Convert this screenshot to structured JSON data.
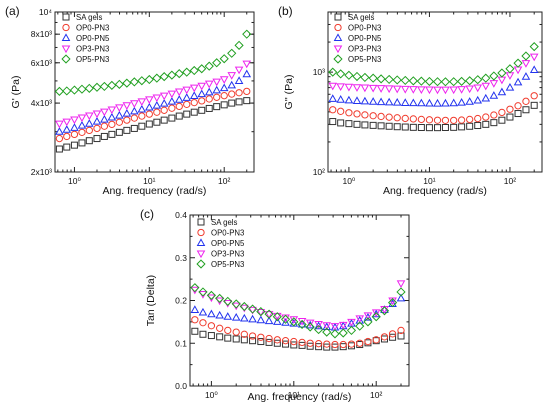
{
  "colors": {
    "SA gels": "#333333",
    "OP0-PN3": "#f03c2e",
    "OP0-PN5": "#2233ee",
    "OP3-PN3": "#ee22ee",
    "OP5-PN3": "#22a022"
  },
  "markers": {
    "SA gels": "square",
    "OP0-PN3": "circle",
    "OP0-PN5": "triangle-up",
    "OP3-PN3": "triangle-down",
    "OP5-PN3": "diamond"
  },
  "chart_data": [
    {
      "panel_label": "(a)",
      "type": "scatter",
      "xscale": "log",
      "yscale": "log",
      "xlabel": "Ang. frequency (rad/s)",
      "ylabel": "G' (Pa)",
      "xlim": [
        0.55,
        250
      ],
      "ylim": [
        2000,
        10000
      ],
      "xticks": [
        {
          "v": 1,
          "label": "10⁰"
        },
        {
          "v": 10,
          "label": "10¹"
        },
        {
          "v": 100,
          "label": "10²"
        }
      ],
      "yticks": [
        {
          "v": 2000,
          "label": "2x10³"
        },
        {
          "v": 4000,
          "label": "4x10³"
        },
        {
          "v": 6000,
          "label": "6x10³"
        },
        {
          "v": 8000,
          "label": "8x10³"
        },
        {
          "v": 10000,
          "label": "10⁴"
        }
      ],
      "legend_position": "top-left",
      "x": [
        0.63,
        0.79,
        1.0,
        1.26,
        1.58,
        2.0,
        2.51,
        3.16,
        3.98,
        5.01,
        6.31,
        7.94,
        10.0,
        12.6,
        15.8,
        20.0,
        25.1,
        31.6,
        39.8,
        50.1,
        63.1,
        79.4,
        100,
        126,
        158,
        200
      ],
      "series": [
        {
          "name": "SA gels",
          "values": [
            2520,
            2570,
            2620,
            2680,
            2740,
            2800,
            2860,
            2920,
            2980,
            3040,
            3100,
            3170,
            3240,
            3300,
            3370,
            3440,
            3510,
            3580,
            3650,
            3720,
            3790,
            3860,
            3930,
            4000,
            4050,
            4100
          ]
        },
        {
          "name": "OP0-PN3",
          "values": [
            2800,
            2860,
            2920,
            2980,
            3040,
            3100,
            3170,
            3230,
            3300,
            3370,
            3440,
            3510,
            3580,
            3650,
            3720,
            3800,
            3870,
            3950,
            4020,
            4090,
            4170,
            4240,
            4310,
            4380,
            4440,
            4500
          ]
        },
        {
          "name": "OP0-PN5",
          "values": [
            3000,
            3060,
            3120,
            3190,
            3250,
            3320,
            3390,
            3460,
            3530,
            3600,
            3680,
            3750,
            3830,
            3900,
            3980,
            4060,
            4140,
            4220,
            4300,
            4380,
            4460,
            4550,
            4650,
            4780,
            5000,
            5350
          ]
        },
        {
          "name": "OP3-PN3",
          "values": [
            3250,
            3320,
            3390,
            3460,
            3530,
            3600,
            3670,
            3750,
            3830,
            3910,
            3990,
            4070,
            4150,
            4230,
            4310,
            4400,
            4490,
            4580,
            4670,
            4760,
            4860,
            4960,
            5080,
            5300,
            5600,
            5950
          ]
        },
        {
          "name": "OP5-PN3",
          "values": [
            4500,
            4520,
            4560,
            4600,
            4640,
            4690,
            4730,
            4780,
            4830,
            4890,
            4950,
            5010,
            5070,
            5140,
            5220,
            5300,
            5380,
            5460,
            5550,
            5650,
            5800,
            6000,
            6250,
            6600,
            7150,
            8000
          ]
        }
      ]
    },
    {
      "panel_label": "(b)",
      "type": "scatter",
      "xscale": "log",
      "yscale": "log",
      "xlabel": "Ang. frequency (rad/s)",
      "ylabel": "G'' (Pa)",
      "xlim": [
        0.55,
        250
      ],
      "ylim": [
        100,
        4000
      ],
      "xticks": [
        {
          "v": 1,
          "label": "10⁰"
        },
        {
          "v": 10,
          "label": "10¹"
        },
        {
          "v": 100,
          "label": "10²"
        }
      ],
      "yticks": [
        {
          "v": 100,
          "label": "10²"
        },
        {
          "v": 1000,
          "label": "10³"
        }
      ],
      "legend_position": "top-left",
      "x": [
        0.63,
        0.79,
        1.0,
        1.26,
        1.58,
        2.0,
        2.51,
        3.16,
        3.98,
        5.01,
        6.31,
        7.94,
        10.0,
        12.6,
        15.8,
        20.0,
        25.1,
        31.6,
        39.8,
        50.1,
        63.1,
        79.4,
        100,
        126,
        158,
        200
      ],
      "series": [
        {
          "name": "SA gels",
          "values": [
            320,
            310,
            305,
            300,
            296,
            293,
            290,
            287,
            284,
            282,
            280,
            279,
            278,
            278,
            279,
            280,
            283,
            287,
            292,
            300,
            312,
            330,
            355,
            385,
            420,
            465
          ]
        },
        {
          "name": "OP0-PN3",
          "values": [
            420,
            405,
            392,
            382,
            373,
            366,
            360,
            354,
            349,
            344,
            340,
            336,
            333,
            330,
            329,
            329,
            331,
            336,
            343,
            355,
            372,
            395,
            425,
            460,
            510,
            580
          ]
        },
        {
          "name": "OP0-PN5",
          "values": [
            540,
            530,
            522,
            515,
            510,
            505,
            501,
            498,
            495,
            492,
            490,
            488,
            486,
            485,
            486,
            489,
            495,
            505,
            520,
            545,
            580,
            630,
            700,
            790,
            900,
            1050
          ]
        },
        {
          "name": "OP3-PN3",
          "values": [
            730,
            720,
            712,
            705,
            700,
            695,
            690,
            686,
            682,
            678,
            675,
            672,
            670,
            668,
            668,
            670,
            675,
            685,
            700,
            730,
            775,
            840,
            930,
            1060,
            1230,
            1430
          ]
        },
        {
          "name": "OP5-PN3",
          "values": [
            1000,
            960,
            930,
            905,
            885,
            870,
            856,
            845,
            835,
            826,
            818,
            812,
            806,
            802,
            800,
            802,
            808,
            820,
            840,
            870,
            915,
            980,
            1080,
            1230,
            1450,
            1800
          ]
        }
      ]
    },
    {
      "panel_label": "(c)",
      "type": "scatter",
      "xscale": "log",
      "yscale": "linear",
      "xlabel": "Ang. frequency (rad/s)",
      "ylabel": "Tan (Delta)",
      "xlim": [
        0.55,
        250
      ],
      "ylim": [
        0.0,
        0.4
      ],
      "xticks": [
        {
          "v": 1,
          "label": "10⁰"
        },
        {
          "v": 10,
          "label": "10¹"
        },
        {
          "v": 100,
          "label": "10²"
        }
      ],
      "yticks": [
        {
          "v": 0.0,
          "label": "0.0"
        },
        {
          "v": 0.1,
          "label": "0.1"
        },
        {
          "v": 0.2,
          "label": "0.2"
        },
        {
          "v": 0.3,
          "label": "0.3"
        },
        {
          "v": 0.4,
          "label": "0.4"
        }
      ],
      "legend_position": "top-left",
      "x": [
        0.63,
        0.79,
        1.0,
        1.26,
        1.58,
        2.0,
        2.51,
        3.16,
        3.98,
        5.01,
        6.31,
        7.94,
        10.0,
        12.6,
        15.8,
        20.0,
        25.1,
        31.6,
        39.8,
        50.1,
        63.1,
        79.4,
        100,
        126,
        158,
        200
      ],
      "series": [
        {
          "name": "SA gels",
          "values": [
            0.128,
            0.121,
            0.118,
            0.115,
            0.112,
            0.11,
            0.108,
            0.106,
            0.104,
            0.102,
            0.1,
            0.098,
            0.096,
            0.095,
            0.093,
            0.092,
            0.091,
            0.091,
            0.092,
            0.094,
            0.097,
            0.101,
            0.106,
            0.11,
            0.114,
            0.117
          ]
        },
        {
          "name": "OP0-PN3",
          "values": [
            0.155,
            0.148,
            0.141,
            0.135,
            0.13,
            0.126,
            0.121,
            0.117,
            0.114,
            0.111,
            0.108,
            0.106,
            0.104,
            0.102,
            0.1,
            0.099,
            0.098,
            0.097,
            0.097,
            0.098,
            0.1,
            0.104,
            0.108,
            0.115,
            0.122,
            0.13
          ]
        },
        {
          "name": "OP0-PN5",
          "values": [
            0.178,
            0.172,
            0.168,
            0.165,
            0.162,
            0.16,
            0.158,
            0.156,
            0.154,
            0.152,
            0.15,
            0.148,
            0.146,
            0.144,
            0.142,
            0.14,
            0.138,
            0.137,
            0.14,
            0.146,
            0.153,
            0.16,
            0.168,
            0.178,
            0.192,
            0.205
          ]
        },
        {
          "name": "OP3-PN3",
          "values": [
            0.225,
            0.215,
            0.207,
            0.2,
            0.194,
            0.188,
            0.183,
            0.178,
            0.173,
            0.168,
            0.164,
            0.16,
            0.156,
            0.152,
            0.148,
            0.145,
            0.142,
            0.14,
            0.143,
            0.15,
            0.158,
            0.165,
            0.172,
            0.18,
            0.2,
            0.24
          ]
        },
        {
          "name": "OP5-PN3",
          "values": [
            0.23,
            0.22,
            0.212,
            0.205,
            0.198,
            0.192,
            0.186,
            0.18,
            0.174,
            0.168,
            0.162,
            0.156,
            0.15,
            0.144,
            0.138,
            0.132,
            0.126,
            0.122,
            0.124,
            0.13,
            0.14,
            0.15,
            0.162,
            0.176,
            0.195,
            0.22
          ]
        }
      ]
    }
  ]
}
